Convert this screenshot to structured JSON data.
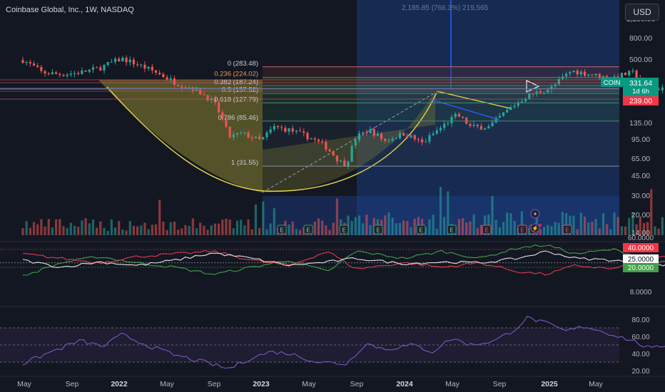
{
  "header": {
    "title": "Coinbase Global, Inc., 1W, NASDAQ",
    "currency_button": "USD",
    "measure_label": "2,185.85 (766.3%) 219,565"
  },
  "colors": {
    "bg": "#131722",
    "up": "#26a69a",
    "down": "#ef5350",
    "cup_fill": "#a39b32",
    "cup_line": "#e6d94a",
    "blue_zone": "#1c3a7a",
    "fib_line": "#4a8c6a",
    "plus_di": "#43a047",
    "minus_di": "#e53950",
    "adx": "#e0e0e0",
    "rsi": "#7e57c2"
  },
  "chart_data": [
    {
      "type": "candlestick",
      "title": "Coinbase Global, Inc., 1W, NASDAQ",
      "y_scale": "log",
      "y_ticks": [
        "1,200.00",
        "800.00",
        "500.00",
        "331.64",
        "239.00",
        "135.00",
        "95.00",
        "65.00",
        "45.00",
        "30.00",
        "20.00",
        "14.00"
      ],
      "x_ticks": [
        "May",
        "Sep",
        "2022",
        "May",
        "Sep",
        "2023",
        "May",
        "Sep",
        "2024",
        "May",
        "Sep",
        "2025",
        "May"
      ],
      "price_markers": {
        "symbol": "COIN",
        "last": "331.64",
        "countdown": "1d 6h",
        "level": "239.00"
      },
      "fib_levels": [
        {
          "label": "0 (283.48)",
          "value": 283.48
        },
        {
          "label": "0.236 (224.02)",
          "value": 224.02
        },
        {
          "label": "0.382 (187.24)",
          "value": 187.24
        },
        {
          "label": "0.5 (157.52)",
          "value": 157.52
        },
        {
          "label": "0.618 (127.79)",
          "value": 127.79
        },
        {
          "label": "0.786 (85.46)",
          "value": 85.46
        },
        {
          "label": "1 (31.55)",
          "value": 31.55
        }
      ],
      "earnings_markers": [
        "E",
        "E",
        "E",
        "E",
        "E",
        "E",
        "E",
        "E",
        "E",
        "E"
      ],
      "event_icons": [
        "spark",
        "bolt"
      ],
      "series": [
        {
          "name": "price",
          "anchors": [
            [
              2021.25,
              380
            ],
            [
              2021.3,
              330
            ],
            [
              2021.4,
              250
            ],
            [
              2021.5,
              240
            ],
            [
              2021.6,
              250
            ],
            [
              2021.7,
              275
            ],
            [
              2021.82,
              340
            ],
            [
              2021.9,
              300
            ],
            [
              2022.0,
              250
            ],
            [
              2022.1,
              200
            ],
            [
              2022.2,
              175
            ],
            [
              2022.3,
              130
            ],
            [
              2022.38,
              60
            ],
            [
              2022.45,
              65
            ],
            [
              2022.55,
              55
            ],
            [
              2022.62,
              75
            ],
            [
              2022.7,
              70
            ],
            [
              2022.8,
              60
            ],
            [
              2022.88,
              50
            ],
            [
              2022.96,
              35
            ],
            [
              2023.0,
              33
            ],
            [
              2023.05,
              60
            ],
            [
              2023.12,
              70
            ],
            [
              2023.2,
              55
            ],
            [
              2023.3,
              65
            ],
            [
              2023.4,
              52
            ],
            [
              2023.5,
              75
            ],
            [
              2023.58,
              98
            ],
            [
              2023.65,
              75
            ],
            [
              2023.75,
              75
            ],
            [
              2023.85,
              110
            ],
            [
              2023.95,
              150
            ],
            [
              2024.0,
              160
            ],
            [
              2024.08,
              180
            ],
            [
              2024.18,
              260
            ],
            [
              2024.28,
              240
            ],
            [
              2024.38,
              220
            ],
            [
              2024.5,
              250
            ],
            [
              2024.6,
              170
            ],
            [
              2024.7,
              185
            ],
            [
              2024.78,
              190
            ],
            [
              2024.85,
              240
            ],
            [
              2024.88,
              331
            ]
          ]
        }
      ]
    },
    {
      "type": "line",
      "y_ticks": [
        "60.0000",
        "40.0000",
        "25.0000",
        "20.0000",
        "8.0000"
      ],
      "series": [
        {
          "name": "+DI",
          "anchors": [
            [
              2021.3,
              10
            ],
            [
              2021.5,
              25
            ],
            [
              2021.7,
              32
            ],
            [
              2021.9,
              25
            ],
            [
              2022.1,
              20
            ],
            [
              2022.3,
              12
            ],
            [
              2022.5,
              20
            ],
            [
              2022.7,
              28
            ],
            [
              2022.9,
              15
            ],
            [
              2023.05,
              38
            ],
            [
              2023.3,
              30
            ],
            [
              2023.5,
              38
            ],
            [
              2023.7,
              30
            ],
            [
              2023.9,
              42
            ],
            [
              2024.05,
              45
            ],
            [
              2024.2,
              35
            ],
            [
              2024.4,
              40
            ],
            [
              2024.6,
              28
            ],
            [
              2024.75,
              22
            ],
            [
              2024.85,
              42
            ],
            [
              2024.92,
              43
            ]
          ]
        },
        {
          "name": "-DI",
          "anchors": [
            [
              2021.3,
              35
            ],
            [
              2021.5,
              30
            ],
            [
              2021.7,
              25
            ],
            [
              2021.9,
              32
            ],
            [
              2022.1,
              35
            ],
            [
              2022.3,
              38
            ],
            [
              2022.5,
              28
            ],
            [
              2022.7,
              22
            ],
            [
              2022.9,
              38
            ],
            [
              2023.05,
              18
            ],
            [
              2023.3,
              25
            ],
            [
              2023.5,
              20
            ],
            [
              2023.7,
              25
            ],
            [
              2023.9,
              15
            ],
            [
              2024.05,
              12
            ],
            [
              2024.2,
              22
            ],
            [
              2024.4,
              18
            ],
            [
              2024.6,
              30
            ],
            [
              2024.75,
              32
            ],
            [
              2024.85,
              22
            ],
            [
              2024.92,
              15
            ]
          ]
        },
        {
          "name": "ADX",
          "anchors": [
            [
              2021.3,
              28
            ],
            [
              2021.5,
              20
            ],
            [
              2021.7,
              26
            ],
            [
              2021.9,
              22
            ],
            [
              2022.1,
              28
            ],
            [
              2022.3,
              36
            ],
            [
              2022.5,
              30
            ],
            [
              2022.7,
              22
            ],
            [
              2022.9,
              26
            ],
            [
              2023.05,
              30
            ],
            [
              2023.3,
              24
            ],
            [
              2023.5,
              26
            ],
            [
              2023.7,
              25
            ],
            [
              2023.9,
              30
            ],
            [
              2024.05,
              38
            ],
            [
              2024.2,
              30
            ],
            [
              2024.4,
              28
            ],
            [
              2024.6,
              22
            ],
            [
              2024.75,
              24
            ],
            [
              2024.85,
              20
            ],
            [
              2024.92,
              24
            ]
          ]
        }
      ]
    },
    {
      "type": "line",
      "y_ticks": [
        "80.00",
        "60.00",
        "40.00",
        "20.00"
      ],
      "series": [
        {
          "name": "RSI",
          "anchors": [
            [
              2021.3,
              28
            ],
            [
              2021.45,
              42
            ],
            [
              2021.6,
              55
            ],
            [
              2021.72,
              48
            ],
            [
              2021.82,
              62
            ],
            [
              2021.95,
              50
            ],
            [
              2022.1,
              38
            ],
            [
              2022.25,
              30
            ],
            [
              2022.38,
              22
            ],
            [
              2022.5,
              35
            ],
            [
              2022.6,
              42
            ],
            [
              2022.7,
              40
            ],
            [
              2022.85,
              30
            ],
            [
              2023.0,
              28
            ],
            [
              2023.1,
              52
            ],
            [
              2023.2,
              45
            ],
            [
              2023.35,
              50
            ],
            [
              2023.45,
              42
            ],
            [
              2023.55,
              58
            ],
            [
              2023.65,
              50
            ],
            [
              2023.78,
              55
            ],
            [
              2023.88,
              68
            ],
            [
              2023.95,
              82
            ],
            [
              2024.05,
              75
            ],
            [
              2024.15,
              66
            ],
            [
              2024.25,
              72
            ],
            [
              2024.4,
              62
            ],
            [
              2024.5,
              55
            ],
            [
              2024.6,
              45
            ],
            [
              2024.7,
              52
            ],
            [
              2024.8,
              48
            ],
            [
              2024.88,
              65
            ],
            [
              2024.92,
              68
            ]
          ]
        }
      ]
    }
  ]
}
